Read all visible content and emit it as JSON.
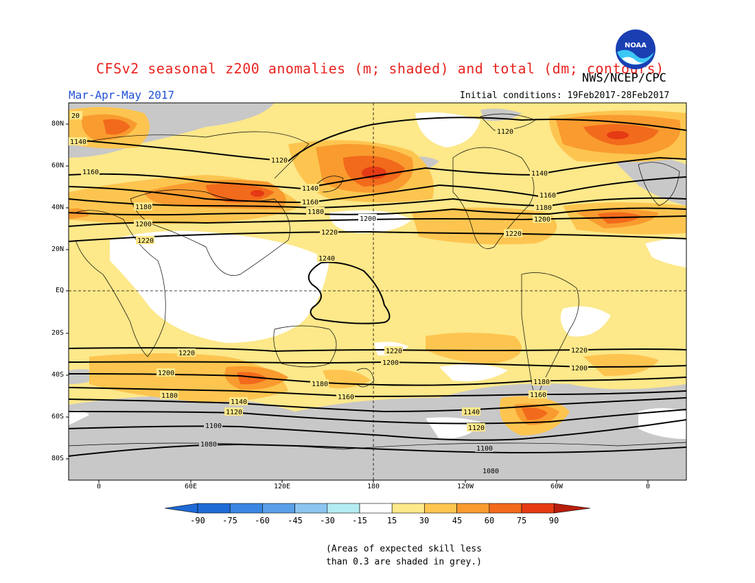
{
  "title": "CFSv2 seasonal z200 anomalies (m; shaded) and total (dm; contours)",
  "agency": "NWS/NCEP/CPC",
  "period": "Mar-Apr-May 2017",
  "initial_conditions": "Initial conditions: 19Feb2017-28Feb2017",
  "logo_text": "NOAA",
  "lat_labels": [
    "80N",
    "60N",
    "40N",
    "20N",
    "EQ",
    "20S",
    "40S",
    "60S",
    "80S"
  ],
  "lon_labels": [
    "0",
    "60E",
    "120E",
    "180",
    "120W",
    "60W",
    "0"
  ],
  "colorbar": {
    "labels": [
      "-90",
      "-75",
      "-60",
      "-45",
      "-30",
      "-15",
      "15",
      "30",
      "45",
      "60",
      "75",
      "90"
    ],
    "colors": [
      "#1e6bd6",
      "#3a86e2",
      "#5a9fe8",
      "#8cc6f0",
      "#b4ecf2",
      "#ffffff",
      "#fde88a",
      "#fdc550",
      "#f99b2f",
      "#f26a1b",
      "#e53a14",
      "#b81e0c"
    ]
  },
  "contour_labels": [
    "1080",
    "1100",
    "1120",
    "1140",
    "1160",
    "1180",
    "1200",
    "1220",
    "1240"
  ],
  "note": [
    "(Areas of expected skill less",
    "than 0.3 are shaded in grey.)"
  ]
}
